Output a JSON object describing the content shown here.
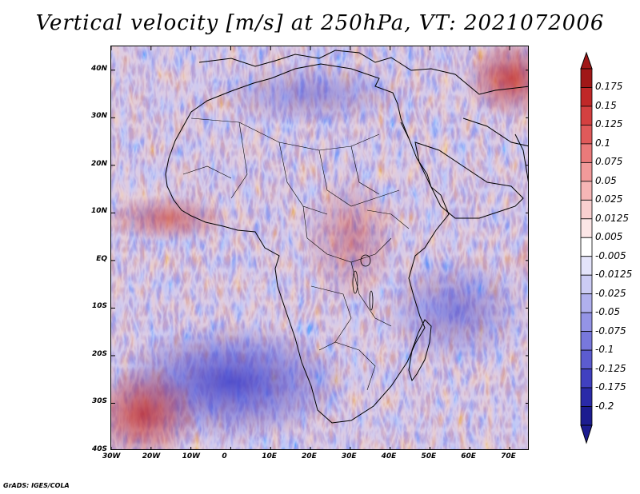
{
  "title": "Vertical velocity [m/s] at 250hPa, VT: 2021072006",
  "footer": "GrADS: IGES/COLA",
  "map": {
    "lat_labels": [
      "40N",
      "30N",
      "20N",
      "10N",
      "EQ",
      "10S",
      "20S",
      "30S",
      "40S"
    ],
    "lat_values": [
      40,
      30,
      20,
      10,
      0,
      -10,
      -20,
      -30,
      -40
    ],
    "lon_labels": [
      "30W",
      "20W",
      "10W",
      "0",
      "10E",
      "20E",
      "30E",
      "40E",
      "50E",
      "60E",
      "70E"
    ],
    "lon_values": [
      -30,
      -20,
      -10,
      0,
      10,
      20,
      30,
      40,
      50,
      60,
      70
    ],
    "lon_range": [
      -30,
      75
    ],
    "lat_range": [
      -40,
      45
    ]
  },
  "colorbar": {
    "labels": [
      "0.175",
      "0.15",
      "0.125",
      "0.1",
      "0.075",
      "0.05",
      "0.025",
      "0.0125",
      "0.005",
      "-0.005",
      "-0.0125",
      "-0.025",
      "-0.05",
      "-0.075",
      "-0.1",
      "-0.125",
      "-0.175",
      "-0.2"
    ],
    "colors": [
      "#a01818",
      "#c02828",
      "#d44040",
      "#e05a5a",
      "#ea7a7a",
      "#f29a9a",
      "#f6b6b6",
      "#f9d0d0",
      "#fce6e6",
      "#ffffff",
      "#e4e4fa",
      "#ccccf4",
      "#b0b0ee",
      "#9494e6",
      "#7878dc",
      "#5c5cd0",
      "#4040c0",
      "#2a2aa8",
      "#1c1c90"
    ]
  },
  "colors": {
    "positive": "#d03030",
    "negative": "#4848d0",
    "coast": "#000000"
  }
}
